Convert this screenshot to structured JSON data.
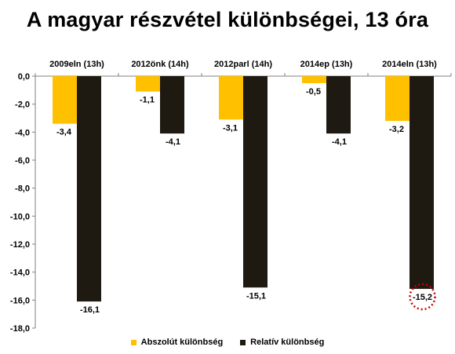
{
  "chart_data": {
    "type": "bar",
    "title": "A magyar részvétel különbségei, 13 óra",
    "categories": [
      "2009eln (13h)",
      "2012önk (14h)",
      "2012parl (14h)",
      "2014ep (13h)",
      "2014eln (13h)"
    ],
    "series": [
      {
        "name": "Abszolút különbség",
        "color": "#ffc000",
        "values": [
          -3.4,
          -1.1,
          -3.1,
          -0.5,
          -3.2
        ],
        "labels": [
          "-3,4",
          "-1,1",
          "-3,1",
          "-0,5",
          "-3,2"
        ]
      },
      {
        "name": "Relatív különbség",
        "color": "#1e1a12",
        "values": [
          -16.1,
          -4.1,
          -15.1,
          -4.1,
          -15.2
        ],
        "labels": [
          "-16,1",
          "-4,1",
          "-15,1",
          "-4,1",
          "-15,2"
        ]
      }
    ],
    "ylim": [
      -18,
      0
    ],
    "yticks": [
      0,
      -2,
      -4,
      -6,
      -8,
      -10,
      -12,
      -14,
      -16,
      -18
    ],
    "ytick_labels": [
      "0,0",
      "-2,0",
      "-4,0",
      "-6,0",
      "-8,0",
      "-10,0",
      "-12,0",
      "-14,0",
      "-16,0",
      "-18,0"
    ],
    "grid": false,
    "legend_position": "bottom",
    "highlight": {
      "series": 1,
      "category": 4,
      "style": "dotted-circle",
      "color": "#cc0000"
    }
  }
}
